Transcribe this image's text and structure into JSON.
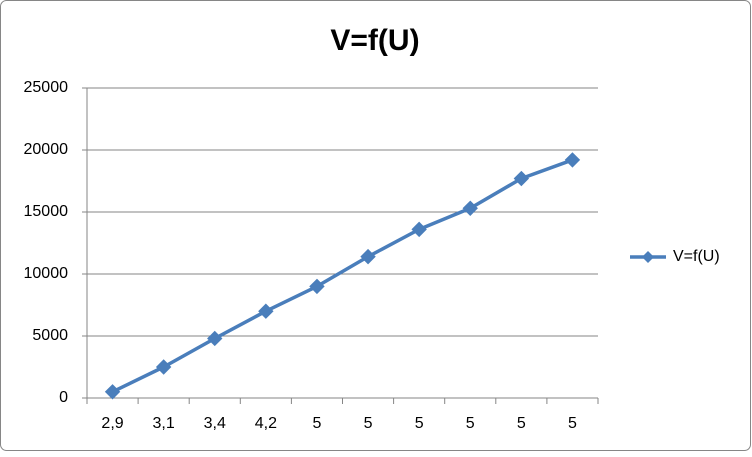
{
  "chart_data": {
    "type": "line",
    "title": "V=f(U)",
    "categories": [
      "2,9",
      "3,1",
      "3,4",
      "4,2",
      "5",
      "5",
      "5",
      "5",
      "5",
      "5"
    ],
    "series": [
      {
        "name": "V=f(U)",
        "color": "#4a7ebb",
        "values": [
          500,
          2500,
          4800,
          7000,
          9000,
          11400,
          13600,
          15300,
          17700,
          19200
        ]
      }
    ],
    "ylim": [
      0,
      25000
    ],
    "yticks": [
      0,
      5000,
      10000,
      15000,
      20000,
      25000
    ],
    "grid": true,
    "legend": "right"
  }
}
